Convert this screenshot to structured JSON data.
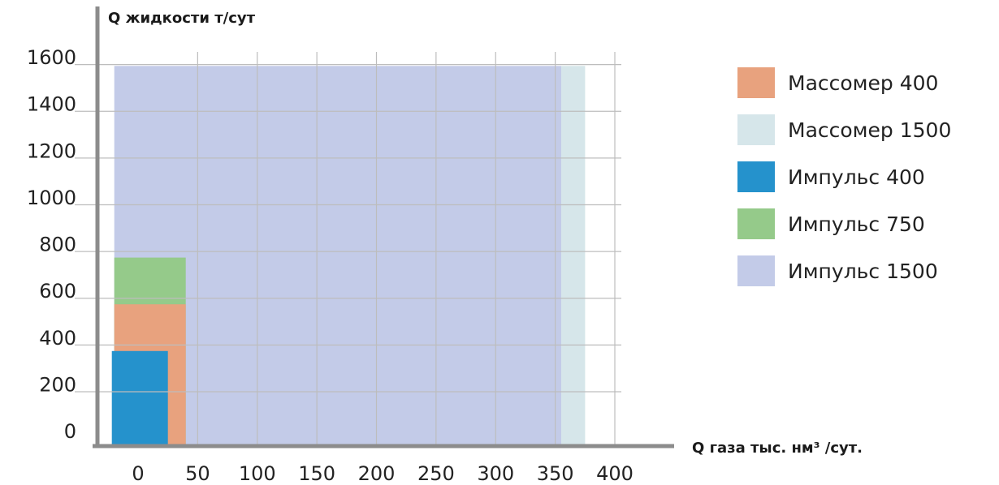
{
  "chart_data": {
    "type": "area",
    "title": "",
    "ylabel": "Q жидкости т/сут",
    "xlabel": "Q газа тыс. нм³ /сут.",
    "x_ticks": [
      "0",
      "50",
      "100",
      "150",
      "200",
      "250",
      "300",
      "350",
      "400"
    ],
    "y_ticks": [
      "0",
      "200",
      "400",
      "600",
      "800",
      "1000",
      "1200",
      "1400",
      "1600"
    ],
    "xlim": [
      -25,
      400
    ],
    "ylim": [
      -120,
      1600
    ],
    "grid": true,
    "legend_position": "right",
    "series": [
      {
        "name": "Импульс 1500",
        "color": "#c3cbe8",
        "x_range": [
          -20,
          355
        ],
        "y_range": [
          -120,
          1540
        ]
      },
      {
        "name": "Массомер 1500",
        "color": "#d6e6ea",
        "x_range": [
          355,
          375
        ],
        "y_range": [
          -120,
          1540
        ]
      },
      {
        "name": "Импульс 750",
        "color": "#95ca8a",
        "x_range": [
          -20,
          40
        ],
        "y_range": [
          520,
          720
        ]
      },
      {
        "name": "Массомер 400",
        "color": "#e8a27e",
        "x_range": [
          -20,
          40
        ],
        "y_range": [
          -120,
          520
        ]
      },
      {
        "name": "Импульс 400",
        "color": "#2592cc",
        "x_range": [
          -22,
          25
        ],
        "y_range": [
          -120,
          320
        ]
      }
    ],
    "legend": [
      {
        "name": "Массомер 400",
        "color": "#e8a27e"
      },
      {
        "name": "Массомер 1500",
        "color": "#d6e6ea"
      },
      {
        "name": "Импульс 400",
        "color": "#2592cc"
      },
      {
        "name": "Импульс 750",
        "color": "#95ca8a"
      },
      {
        "name": "Импульс 1500",
        "color": "#c3cbe8"
      }
    ],
    "colors": {
      "axis": "#8c8c8c",
      "grid": "#bdbdbd"
    }
  }
}
